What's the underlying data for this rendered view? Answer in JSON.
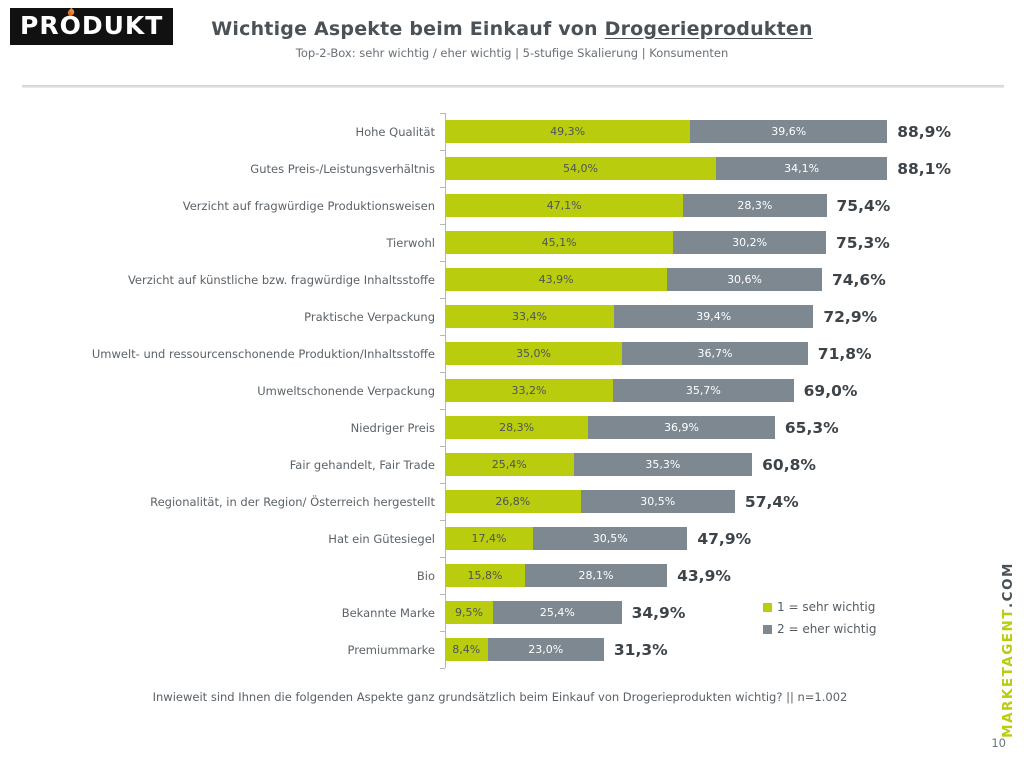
{
  "logo": {
    "pre": "PR",
    "o": "O",
    "post": "DUKT"
  },
  "header": {
    "title_prefix": "Wichtige Aspekte beim Einkauf von ",
    "title_emphasis": "Drogerieprodukten",
    "subtitle": "Top-2-Box: sehr wichtig / eher wichtig | 5-stufige Skalierung | Konsumenten"
  },
  "chart_data": {
    "type": "bar",
    "orientation": "horizontal",
    "stacked": true,
    "unit": "%",
    "xlim": [
      0,
      100
    ],
    "legend_position": "bottom-right",
    "categories": [
      "Hohe Qualität",
      "Gutes Preis-/Leistungsverhältnis",
      "Verzicht auf fragwürdige Produktionsweisen",
      "Tierwohl",
      "Verzicht auf künstliche bzw. fragwürdige Inhaltsstoffe",
      "Praktische Verpackung",
      "Umwelt- und ressourcenschonende Produktion/Inhaltsstoffe",
      "Umweltschonende Verpackung",
      "Niedriger Preis",
      "Fair gehandelt, Fair Trade",
      "Regionalität, in der Region/ Österreich hergestellt",
      "Hat ein Gütesiegel",
      "Bio",
      "Bekannte Marke",
      "Premiummarke"
    ],
    "series": [
      {
        "name": "1 = sehr wichtig",
        "color": "#bacc0e",
        "label_color": "#4d5459",
        "values": [
          49.3,
          54.0,
          47.1,
          45.1,
          43.9,
          33.4,
          35.0,
          33.2,
          28.3,
          25.4,
          26.8,
          17.4,
          15.8,
          9.5,
          8.4
        ]
      },
      {
        "name": "2 = eher wichtig",
        "color": "#7d8891",
        "label_color": "#ffffff",
        "values": [
          39.6,
          34.1,
          28.3,
          30.2,
          30.6,
          39.4,
          36.7,
          35.7,
          36.9,
          35.3,
          30.5,
          30.5,
          28.1,
          25.4,
          23.0
        ]
      }
    ],
    "totals": [
      88.9,
      88.1,
      75.4,
      75.3,
      74.6,
      72.9,
      71.8,
      69.0,
      65.3,
      60.8,
      57.4,
      47.9,
      43.9,
      34.9,
      31.3
    ]
  },
  "footer": {
    "question": "Inwieweit sind Ihnen die folgenden Aspekte ganz grundsätzlich beim Einkauf von Drogerieprodukten wichtig? || n=1.002",
    "page_number": "10"
  },
  "brand": {
    "name": "MARKETAGENT",
    "suffix": ".COM"
  }
}
